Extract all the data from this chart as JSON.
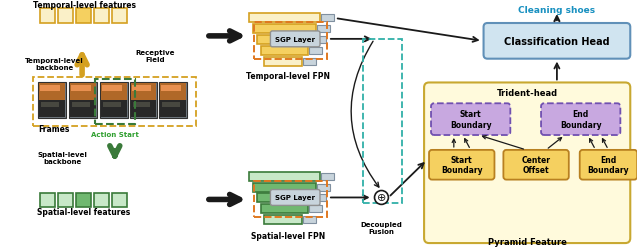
{
  "bg_color": "#ffffff",
  "temporal_features_label": "Temporal-level features",
  "temporal_backbone_label": "Temporal-level\nbackbone",
  "spatial_features_label": "Spatial-level features",
  "spatial_backbone_label": "Spatial-level\nbackbone",
  "frames_label": "Frames",
  "receptive_field_label": "Receptive\nField",
  "action_start_label": "Action Start",
  "temporal_fpn_label": "Temporal-level FPN",
  "spatial_fpn_label": "Spatial-level FPN",
  "decoupled_fusion_label": "Decoupled\nFusion",
  "sgp_layer_label": "SGP Layer",
  "classification_head_label": "Classification Head",
  "cleaning_shoes_label": "Cleaning shoes",
  "trident_head_label": "Trident-head",
  "pyramid_feature_label": "Pyramid Feature",
  "start_boundary_top_label": "Start\nBoundary",
  "end_boundary_top_label": "End\nBoundary",
  "start_boundary_bot_label": "Start\nBoundary",
  "center_offset_label": "Center\nOffset",
  "end_boundary_bot_label": "End\nBoundary",
  "yellow_light": "#FAF0C8",
  "yellow_mid": "#F5D060",
  "yellow_dark": "#D4A020",
  "green_light": "#C8E8C8",
  "green_mid": "#70B870",
  "green_dark": "#3A7A3A",
  "gray_box": "#C8D4DC",
  "light_blue": "#D0E4F0",
  "purple": "#C8A8E0",
  "light_yellow_bg": "#FFFADC",
  "orange_dash": "#E07820",
  "teal_dash": "#30B0A8",
  "black": "#1A1A1A",
  "cyan_text": "#1890C0"
}
